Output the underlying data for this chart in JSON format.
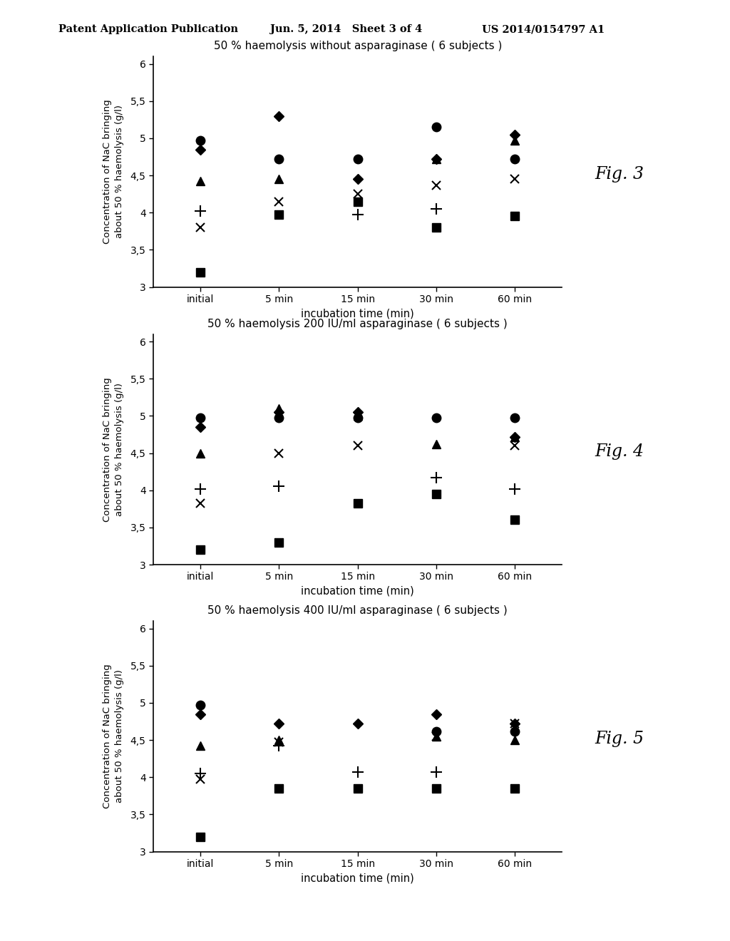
{
  "header_left": "Patent Application Publication",
  "header_mid": "Jun. 5, 2014   Sheet 3 of 4",
  "header_right": "US 2014/0154797 A1",
  "fig_labels": [
    "Fig. 3",
    "Fig. 4",
    "Fig. 5"
  ],
  "titles": [
    "50 % haemolysis without asparaginase ( 6 subjects )",
    "50 % haemolysis 200 IU/ml asparaginase ( 6 subjects )",
    "50 % haemolysis 400 IU/ml asparaginase ( 6 subjects )"
  ],
  "xlabel": "incubation time (min)",
  "ylabel_line1": "Concentration of NaC bringing",
  "ylabel_line2": "about 50 % haemolysis (g/l)",
  "xtick_labels": [
    "initial",
    "5 min",
    "15 min",
    "30 min",
    "60 min"
  ],
  "x_positions": [
    0,
    1,
    2,
    3,
    4
  ],
  "ylim": [
    3.0,
    6.1
  ],
  "yticks": [
    3,
    3.5,
    4,
    4.5,
    5,
    5.5,
    6
  ],
  "ytick_labels": [
    "3",
    "3,5",
    "4",
    "4,5",
    "5",
    "5,5",
    "6"
  ],
  "plots": [
    {
      "comment": "Fig 3 - no asparaginase",
      "circle": [
        4.97,
        4.72,
        4.72,
        5.15,
        4.72
      ],
      "diamond": [
        4.85,
        5.3,
        4.45,
        4.72,
        5.05
      ],
      "triangle": [
        4.42,
        4.45,
        null,
        4.72,
        4.97
      ],
      "square": [
        3.2,
        3.97,
        4.15,
        3.8,
        3.95
      ],
      "plus": [
        4.02,
        null,
        3.97,
        4.05,
        null
      ],
      "cross": [
        3.8,
        4.15,
        4.25,
        4.37,
        4.45
      ]
    },
    {
      "comment": "Fig 4 - 200 IU/ml",
      "circle": [
        4.97,
        4.97,
        4.97,
        4.97,
        4.97
      ],
      "diamond": [
        4.85,
        5.05,
        5.05,
        null,
        4.72
      ],
      "triangle": [
        4.5,
        5.1,
        5.0,
        4.62,
        4.72
      ],
      "square": [
        3.2,
        3.3,
        3.82,
        3.95,
        3.6
      ],
      "plus": [
        4.02,
        4.05,
        null,
        4.17,
        4.02
      ],
      "cross": [
        3.82,
        4.5,
        4.6,
        null,
        4.6
      ]
    },
    {
      "comment": "Fig 5 - 400 IU/ml",
      "circle": [
        4.97,
        null,
        null,
        4.62,
        4.62
      ],
      "diamond": [
        4.85,
        4.72,
        4.72,
        4.85,
        4.72
      ],
      "triangle": [
        4.42,
        4.5,
        null,
        4.55,
        4.5
      ],
      "square": [
        3.2,
        3.85,
        3.85,
        3.85,
        3.85
      ],
      "plus": [
        4.05,
        4.42,
        4.07,
        4.07,
        null
      ],
      "cross": [
        3.97,
        4.47,
        null,
        4.55,
        4.72
      ]
    }
  ]
}
